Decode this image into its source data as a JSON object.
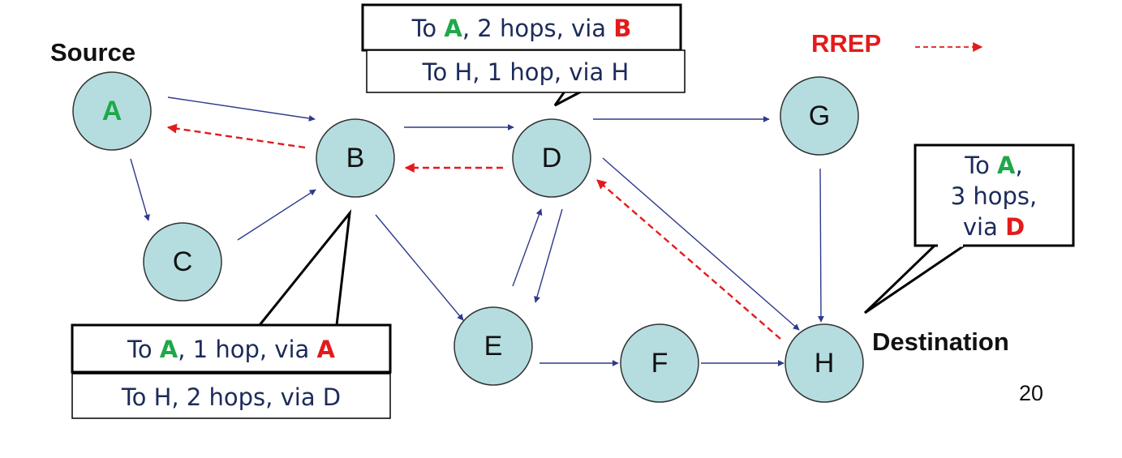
{
  "labels": {
    "source": "Source",
    "destination": "Destination",
    "page_number": "20"
  },
  "legend": {
    "rrep_label": "RREP",
    "rrep_color": "#e31b1b"
  },
  "nodes": {
    "A": "A",
    "B": "B",
    "C": "C",
    "D": "D",
    "E": "E",
    "F": "F",
    "G": "G",
    "H": "H"
  },
  "callouts": {
    "d_top": {
      "p1": "To ",
      "n1": "A",
      "p2": ", 2 hops, via ",
      "n2": "B"
    },
    "d_bottom": "To H, 1 hop, via H",
    "b_top": {
      "p1": "To ",
      "n1": "A",
      "p2": ", 1 hop, via ",
      "n2": "A"
    },
    "b_bottom": "To H, 2 hops, via D",
    "h": {
      "l1a": "To ",
      "l1b": "A",
      "l1c": ",",
      "l2": "3 hops,",
      "l3a": "via ",
      "l3b": "D"
    }
  },
  "colors": {
    "node_fill": "#b5dde0",
    "rreq_arrow": "#2e3a8c",
    "rrep_arrow": "#e31b1b",
    "highlight_source": "#1fa84a",
    "highlight_hop": "#e31b1b"
  }
}
